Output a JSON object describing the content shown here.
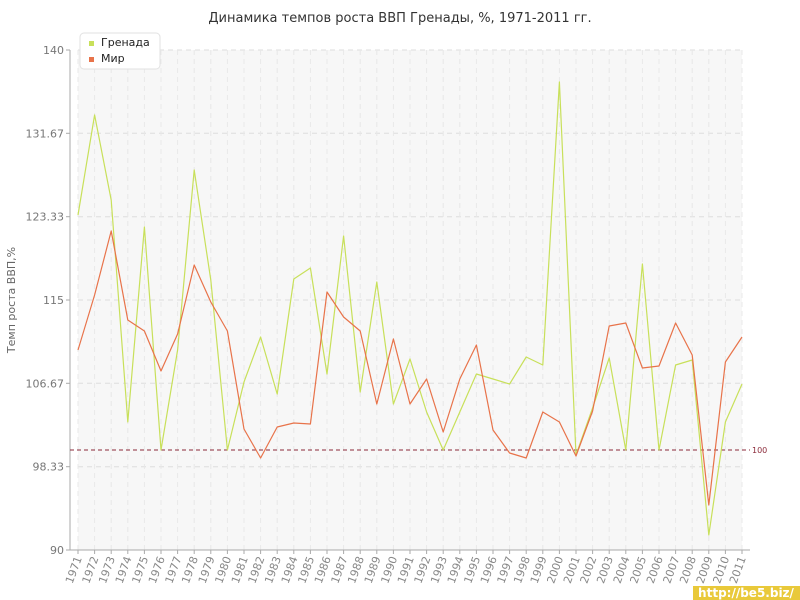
{
  "chart_data": {
    "type": "line",
    "title": "Динамика темпов роста ВВП Гренады, %, 1971-2011 гг.",
    "xlabel": "",
    "ylabel": "Темп роста ВВП,%",
    "ylim": [
      90,
      140
    ],
    "yticks": [
      "90",
      "98.33",
      "106.67",
      "115",
      "123.33",
      "131.67",
      "140"
    ],
    "x": [
      "1971",
      "1972",
      "1973",
      "1974",
      "1975",
      "1976",
      "1977",
      "1978",
      "1979",
      "1980",
      "1981",
      "1982",
      "1983",
      "1984",
      "1985",
      "1986",
      "1987",
      "1988",
      "1989",
      "1990",
      "1991",
      "1992",
      "1993",
      "1994",
      "1995",
      "1996",
      "1997",
      "1998",
      "1999",
      "2000",
      "2001",
      "2002",
      "2003",
      "2004",
      "2005",
      "2006",
      "2007",
      "2008",
      "2009",
      "2010",
      "2011"
    ],
    "series": [
      {
        "name": "Гренада",
        "color": "#c8e05a",
        "values": [
          123.5,
          133.5,
          125,
          102.8,
          122.3,
          100,
          110,
          128,
          117,
          100,
          106.8,
          111.3,
          105.6,
          117.1,
          118.2,
          107.6,
          121.4,
          105.8,
          116.8,
          104.6,
          109.1,
          103.8,
          100,
          103.8,
          107.6,
          107.1,
          106.6,
          109.3,
          108.5,
          136.8,
          99.5,
          104.2,
          109.2,
          100,
          118.6,
          100,
          108.5,
          109,
          91.5,
          102.8,
          106.6
        ]
      },
      {
        "name": "Мир",
        "color": "#e8734a",
        "values": [
          110,
          115.5,
          121.9,
          113,
          111.9,
          107.9,
          111.6,
          118.5,
          114.8,
          111.9,
          102.1,
          99.2,
          102.3,
          102.7,
          102.6,
          115.8,
          113.3,
          111.9,
          104.6,
          111.1,
          104.6,
          107.1,
          101.8,
          107.1,
          110.5,
          102,
          99.7,
          99.2,
          103.8,
          102.8,
          99.4,
          103.9,
          112.4,
          112.7,
          108.2,
          108.4,
          112.7,
          109.5,
          94.5,
          108.8,
          111.3
        ]
      }
    ],
    "reference_line": {
      "value": 100,
      "label": "100",
      "color": "#8b2a3a"
    },
    "grid": true,
    "legend": "top-left"
  },
  "watermark": "http://be5.biz/"
}
